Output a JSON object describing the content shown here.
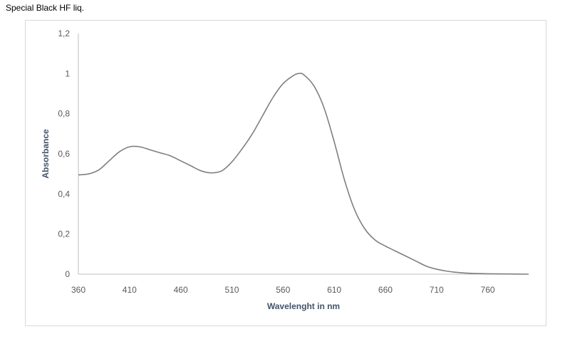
{
  "page_title": "Special Black HF liq.",
  "colors": {
    "line": "#7f7f7f",
    "axis": "#bfbfbf",
    "text": "#595959",
    "axis_title": "#44546a",
    "frame": "#d9d9d9"
  },
  "chart_data": {
    "type": "line",
    "title": "",
    "xlabel": "Wavelenght in nm",
    "ylabel": "Absorbance",
    "xlim": [
      360,
      800
    ],
    "ylim": [
      0,
      1.2
    ],
    "x_ticks": [
      360,
      410,
      460,
      510,
      560,
      610,
      660,
      710,
      760
    ],
    "y_ticks": [
      0,
      0.2,
      0.4,
      0.6,
      0.8,
      1,
      1.2
    ],
    "y_tick_labels": [
      "0",
      "0,2",
      "0,4",
      "0,6",
      "0,8",
      "1",
      "1,2"
    ],
    "grid": false,
    "legend": "none",
    "series": [
      {
        "x": [
          360,
          370,
          380,
          390,
          400,
          410,
          420,
          430,
          440,
          450,
          460,
          470,
          480,
          490,
          500,
          510,
          520,
          530,
          540,
          550,
          560,
          570,
          575,
          580,
          590,
          600,
          610,
          620,
          630,
          640,
          650,
          660,
          670,
          680,
          690,
          700,
          710,
          720,
          730,
          740,
          760,
          780,
          800
        ],
        "y": [
          0.495,
          0.5,
          0.52,
          0.565,
          0.61,
          0.635,
          0.635,
          0.62,
          0.605,
          0.59,
          0.565,
          0.54,
          0.515,
          0.505,
          0.515,
          0.56,
          0.625,
          0.7,
          0.79,
          0.88,
          0.95,
          0.99,
          1.0,
          0.995,
          0.94,
          0.83,
          0.66,
          0.47,
          0.32,
          0.225,
          0.17,
          0.14,
          0.115,
          0.09,
          0.065,
          0.04,
          0.025,
          0.015,
          0.009,
          0.005,
          0.002,
          0.001,
          0.0
        ]
      }
    ]
  }
}
